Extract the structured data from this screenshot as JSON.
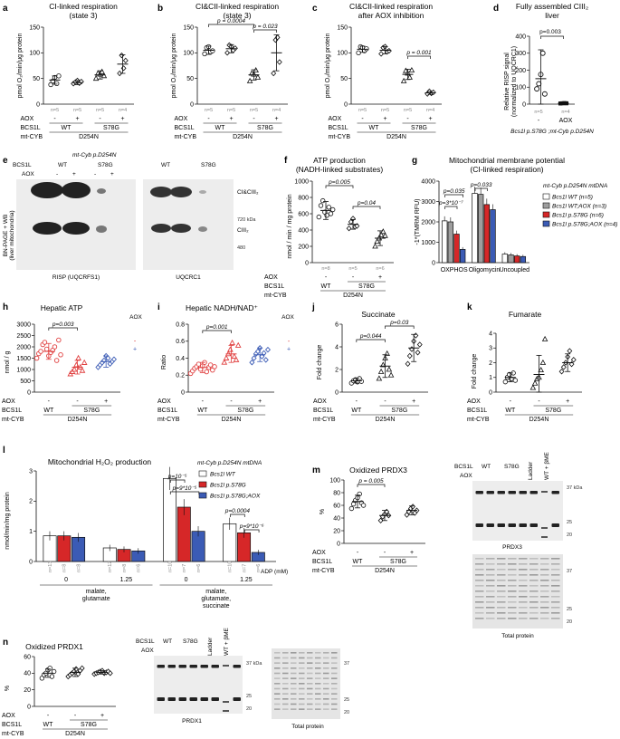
{
  "figure": {
    "panels": {
      "a": {
        "label": "a",
        "title": [
          "CI-linked respiration",
          "(state 3)"
        ]
      },
      "b": {
        "label": "b",
        "title": [
          "CI&CII-linked respiration",
          "(state 3)"
        ],
        "pvals": [
          "p = 0.0004",
          "p = 0.023"
        ]
      },
      "c": {
        "label": "c",
        "title": [
          "CI&CII-linked respiration",
          "after AOX inhibition"
        ],
        "pvals": [
          "p = 0.001"
        ]
      },
      "d": {
        "label": "d",
        "title": [
          "Fully assembled CIII₂",
          "liver"
        ],
        "ylabel": [
          "Relative RISP signal",
          "(normalized to UQCRC1)"
        ],
        "pvals": [
          "p=0.003"
        ],
        "ns": [
          "n=5",
          "n=4"
        ],
        "aox_row": [
          "-",
          "AOX"
        ],
        "genotype": "Bcs1l p.S78G ;mt-Cyb p.D254N"
      },
      "e": {
        "label": "e",
        "mtcyb": "mt-Cyb p.D254N",
        "bcs1l": "BCS1L",
        "aox": "AOX",
        "wt": "WT",
        "s78g": "S78G",
        "ylabel": [
          "BN-PAGE + WB",
          "(liver mitochondria)"
        ],
        "bands": [
          "CI&CIII₂",
          "CIII₂"
        ],
        "markers": [
          "720 kDa",
          "480"
        ],
        "blot_labels": [
          "RISP (UQCRFS1)",
          "UQCRC1"
        ]
      },
      "f": {
        "label": "f",
        "title": [
          "ATP production",
          "(NADH-linked substrates)"
        ],
        "ylabel": "nmol / min / mg protein",
        "pvals": [
          "p=0.005",
          "p=0.04"
        ]
      },
      "g": {
        "label": "g",
        "title": [
          "Mitochondrial membrane potential",
          "(CI-linked respiration)"
        ],
        "ylabel": "-1*(TMRM RFU)",
        "pvals": [
          "p=0.035",
          "p=3*10⁻⁷",
          "p=0.033"
        ],
        "xcats": [
          "OXPHOS",
          "Oligomycin",
          "Uncoupled"
        ],
        "legend_title": "mt-Cyb p.D254N mtDNA",
        "legend": [
          "Bcs1l WT (n=5)",
          "Bcs1l WT;AOX (n=3)",
          "Bcs1l p.S78G (n=6)",
          "Bcs1l p.S78G;AOX (n=4)"
        ]
      },
      "h": {
        "label": "h",
        "title": "Hepatic ATP",
        "ylabel": "nmol / g",
        "pvals": [
          "p=0.003"
        ],
        "ns": [
          "n=13",
          "n=8",
          "n=9"
        ],
        "aox_side": "AOX"
      },
      "i": {
        "label": "i",
        "title": "Hepatic NADH/NAD⁺",
        "ylabel": "Ratio",
        "pvals": [
          "p=0.001"
        ],
        "ns": [
          "n=13",
          "n=8",
          "n=9"
        ],
        "aox_side": "AOX"
      },
      "j": {
        "label": "j",
        "title": "Succinate",
        "ylabel": "Fold change",
        "pvals": [
          "p=0.044",
          "p=0.03"
        ],
        "ns": [
          "n=6",
          "n=7",
          "n=7"
        ]
      },
      "k": {
        "label": "k",
        "title": "Fumarate",
        "ylabel": "Fold change",
        "ns": [
          "n=6",
          "n=7",
          "n=7"
        ]
      },
      "l": {
        "label": "l",
        "title": "Mitochondrial H₂O₂ production",
        "ylabel": "nmol/min/mg protein",
        "pvals": [
          "p=10⁻⁵",
          "p=9*10⁻⁵",
          "p=0.0004",
          "p=9*10⁻⁶"
        ],
        "legend_title": "mt-Cyb p.D254N mtDNA",
        "legend": [
          "Bcs1l WT",
          "Bcs1l p.S78G",
          "Bcs1l p.S78G;AOX"
        ],
        "adp_label": "ADP (mM)",
        "adp": [
          "0",
          "1.25",
          "0",
          "1.25"
        ],
        "substrates": [
          [
            "malate,",
            "glutamate"
          ],
          [
            "malate,",
            "glutamate,",
            "succinate"
          ]
        ]
      },
      "m": {
        "label": "m",
        "title": "Oxidized PRDX3",
        "ylabel": "%",
        "pvals": [
          "p = 0.005"
        ],
        "ns": [
          "n=7",
          "n=5",
          "n=6"
        ],
        "blot_top": [
          "BCS1L",
          "WT",
          "S78G",
          "Ladder",
          "WT + βME"
        ],
        "markers": [
          "37 kDa",
          "25",
          "20"
        ],
        "blot_label": "PRDX3",
        "gel_label": "Total protein",
        "gel_markers": [
          "37",
          "25",
          "20"
        ]
      },
      "n": {
        "label": "n",
        "title": "Oxidized PRDX1",
        "ylabel": "%",
        "ns": [
          "n=7",
          "n=8",
          "n=9"
        ],
        "blot_top": [
          "BCS1L",
          "WT",
          "S78G",
          "Ladder",
          "WT + βME"
        ],
        "markers": [
          "37 kDa",
          "25",
          "20"
        ],
        "blot_label": "PRDX1",
        "gel_label": "Total protein",
        "gel_markers": [
          "37",
          "25",
          "20"
        ]
      }
    },
    "rows": {
      "aox": "AOX",
      "bcs1l": "BCS1L",
      "mtcyb": "mt-CYB",
      "wt": "WT",
      "s78g": "S78G",
      "d254n": "D254N",
      "minus": "-",
      "plus": "+"
    },
    "colors": {
      "wt": "#ffffff",
      "s78g": "#d62728",
      "aox": "#3b5bb5",
      "wtaox": "#9e9e9e",
      "outline": "#111111",
      "s78g_point": "#e04040",
      "aox_point": "#3b5bb5"
    }
  },
  "chart_data": [
    {
      "panel": "a",
      "type": "scatter",
      "ylabel": "pmol O₂/min/μg protein",
      "ylim": [
        0,
        150
      ],
      "yticks": [
        0,
        50,
        100,
        150
      ],
      "categories": [
        "WT -",
        "WT +",
        "S78G -",
        "S78G +"
      ],
      "ns": [
        "n=5",
        "n=5",
        "n=5",
        "n=4"
      ],
      "means": [
        47,
        42,
        57,
        78
      ],
      "sd": [
        8,
        4,
        8,
        18
      ],
      "points": [
        [
          38,
          45,
          52,
          40,
          55
        ],
        [
          40,
          43,
          46,
          41,
          44
        ],
        [
          50,
          60,
          58,
          63,
          55
        ],
        [
          60,
          95,
          70,
          85
        ]
      ]
    },
    {
      "panel": "b",
      "type": "scatter",
      "ylabel": "pmol O₂/min/μg protein",
      "ylim": [
        0,
        150
      ],
      "yticks": [
        0,
        50,
        100,
        150
      ],
      "categories": [
        "WT -",
        "WT +",
        "S78G -",
        "S78G +"
      ],
      "ns": [
        "n=5",
        "n=5",
        "n=5",
        "n=4"
      ],
      "means": [
        105,
        108,
        57,
        100
      ],
      "sd": [
        8,
        8,
        10,
        35
      ],
      "points": [
        [
          98,
          110,
          112,
          102,
          104
        ],
        [
          100,
          115,
          112,
          105,
          109
        ],
        [
          45,
          60,
          58,
          66,
          52
        ],
        [
          60,
          125,
          130,
          82
        ]
      ]
    },
    {
      "panel": "c",
      "type": "scatter",
      "ylabel": "pmol O₂/min/μg protein",
      "ylim": [
        0,
        150
      ],
      "yticks": [
        0,
        50,
        100,
        150
      ],
      "categories": [
        "WT -",
        "WT +",
        "S78G -",
        "S78G +"
      ],
      "ns": [
        "n=5",
        "n=5",
        "n=5",
        "n=4"
      ],
      "means": [
        107,
        105,
        58,
        22
      ],
      "sd": [
        6,
        7,
        10,
        3
      ],
      "points": [
        [
          100,
          112,
          110,
          104,
          108
        ],
        [
          98,
          110,
          112,
          102,
          104
        ],
        [
          45,
          65,
          60,
          52,
          66
        ],
        [
          20,
          25,
          21,
          23
        ]
      ]
    },
    {
      "panel": "d",
      "type": "scatter",
      "ylim": [
        0,
        400
      ],
      "yticks": [
        0,
        100,
        200,
        300,
        400
      ],
      "categories": [
        "-",
        "AOX"
      ],
      "means": [
        150,
        5
      ],
      "sd": [
        170,
        2
      ],
      "points": [
        [
          90,
          120,
          175,
          300,
          60
        ],
        [
          4,
          5,
          6,
          5
        ]
      ]
    },
    {
      "panel": "f",
      "type": "scatter",
      "ylim": [
        0,
        1000
      ],
      "yticks": [
        0,
        200,
        400,
        600,
        800,
        1000
      ],
      "categories": [
        "WT -",
        "S78G -",
        "S78G +"
      ],
      "ns": [
        "n=8",
        "n=5",
        "n=6"
      ],
      "means": [
        640,
        470,
        300
      ],
      "sd": [
        110,
        60,
        90
      ],
      "points": [
        [
          560,
          700,
          760,
          620,
          580,
          680,
          600,
          650
        ],
        [
          420,
          500,
          540,
          440,
          450
        ],
        [
          200,
          260,
          300,
          340,
          380,
          330
        ]
      ]
    },
    {
      "panel": "g",
      "type": "bar",
      "ylim": [
        0,
        4000
      ],
      "yticks": [
        0,
        1000,
        2000,
        3000,
        4000
      ],
      "categories": [
        "OXPHOS",
        "Oligomycin",
        "Uncoupled"
      ],
      "series": [
        {
          "name": "Bcs1l WT (n=5)",
          "values": [
            2050,
            3400,
            420
          ]
        },
        {
          "name": "Bcs1l WT;AOX (n=3)",
          "values": [
            2000,
            3350,
            380
          ]
        },
        {
          "name": "Bcs1l p.S78G (n=6)",
          "values": [
            1400,
            2850,
            330
          ]
        },
        {
          "name": "Bcs1l p.S78G;AOX (n=4)",
          "values": [
            650,
            2600,
            300
          ]
        }
      ]
    },
    {
      "panel": "h",
      "type": "scatter",
      "ylim": [
        0,
        3000
      ],
      "yticks": [
        0,
        500,
        1000,
        1500,
        2000,
        2500,
        3000
      ],
      "categories": [
        "WT -",
        "S78G -",
        "S78G +"
      ],
      "means": [
        1800,
        1100,
        1350
      ],
      "sd": [
        350,
        300,
        250
      ],
      "points": [
        [
          1500,
          1700,
          1800,
          2100,
          2200,
          1900,
          1600,
          1750,
          1850,
          2000,
          1400,
          2300,
          1650
        ],
        [
          800,
          900,
          1000,
          1200,
          1500,
          1100,
          950,
          1300
        ],
        [
          1100,
          1200,
          1300,
          1400,
          1600,
          1500,
          1250,
          1350,
          1450
        ]
      ],
      "side": {
        "minus": 2300,
        "plus": 1950
      }
    },
    {
      "panel": "i",
      "type": "scatter",
      "ylim": [
        0,
        0.8
      ],
      "yticks": [
        0,
        0.2,
        0.4,
        0.6,
        0.8
      ],
      "categories": [
        "WT -",
        "S78G -",
        "S78G +"
      ],
      "means": [
        0.29,
        0.45,
        0.44
      ],
      "sd": [
        0.06,
        0.1,
        0.08
      ],
      "points": [
        [
          0.22,
          0.25,
          0.28,
          0.3,
          0.33,
          0.27,
          0.31,
          0.35,
          0.24,
          0.29,
          0.32,
          0.26,
          0.3
        ],
        [
          0.35,
          0.4,
          0.45,
          0.5,
          0.58,
          0.42,
          0.38,
          0.55
        ],
        [
          0.35,
          0.4,
          0.45,
          0.48,
          0.52,
          0.42,
          0.46,
          0.38,
          0.5
        ]
      ],
      "side": {
        "minus": 0.61,
        "plus": 0.52
      }
    },
    {
      "panel": "j",
      "type": "scatter",
      "ylim": [
        0,
        6
      ],
      "yticks": [
        0,
        2,
        4,
        6
      ],
      "categories": [
        "WT -",
        "S78G -",
        "S78G +"
      ],
      "means": [
        1.0,
        2.3,
        3.9
      ],
      "sd": [
        0.2,
        1.0,
        1.2
      ],
      "points": [
        [
          0.8,
          1.0,
          1.1,
          0.9,
          1.2,
          0.95
        ],
        [
          1.2,
          1.8,
          2.4,
          3.0,
          3.4,
          2.0,
          1.5
        ],
        [
          2.5,
          3.2,
          3.8,
          4.5,
          5.0,
          3.5,
          4.2
        ]
      ]
    },
    {
      "panel": "k",
      "type": "scatter",
      "ylim": [
        0,
        4
      ],
      "yticks": [
        0,
        1,
        2,
        3,
        4
      ],
      "categories": [
        "WT -",
        "S78G -",
        "S78G +"
      ],
      "means": [
        1.0,
        1.2,
        2.0
      ],
      "sd": [
        0.3,
        1.3,
        0.6
      ],
      "points": [
        [
          0.7,
          1.0,
          1.2,
          0.9,
          1.3,
          0.8
        ],
        [
          0.3,
          0.6,
          0.9,
          1.0,
          1.5,
          2.0,
          3.6
        ],
        [
          1.4,
          1.7,
          2.0,
          2.4,
          2.8,
          1.9,
          2.2
        ]
      ]
    },
    {
      "panel": "l",
      "type": "bar",
      "ylim": [
        0,
        3
      ],
      "yticks": [
        0,
        1,
        2,
        3
      ],
      "groups": [
        "0 / malate,glutamate",
        "1.25 / malate,glutamate",
        "0 / malate,glutamate,succinate",
        "1.25 / malate,glutamate,succinate"
      ],
      "series": [
        {
          "name": "Bcs1l WT",
          "values": [
            0.85,
            0.45,
            2.75,
            1.25
          ]
        },
        {
          "name": "Bcs1l p.S78G",
          "values": [
            0.85,
            0.4,
            1.8,
            0.95
          ]
        },
        {
          "name": "Bcs1l p.S78G;AOX",
          "values": [
            0.8,
            0.35,
            1.0,
            0.3
          ]
        }
      ],
      "ns": [
        [
          "n=13",
          "n=8",
          "n=8"
        ],
        [
          "n=12",
          "n=8",
          "n=6"
        ],
        [
          "n=10",
          "n=7",
          "n=6"
        ],
        [
          "n=10",
          "n=7",
          "n=6"
        ]
      ]
    },
    {
      "panel": "m",
      "type": "scatter",
      "ylim": [
        0,
        100
      ],
      "yticks": [
        0,
        20,
        40,
        60,
        80,
        100
      ],
      "categories": [
        "WT -",
        "S78G -",
        "S78G +"
      ],
      "means": [
        66,
        44,
        52
      ],
      "sd": [
        10,
        8,
        7
      ],
      "points": [
        [
          55,
          62,
          68,
          72,
          78,
          64,
          60
        ],
        [
          36,
          42,
          46,
          50,
          44
        ],
        [
          45,
          50,
          55,
          58,
          48,
          52
        ]
      ]
    },
    {
      "panel": "n",
      "type": "scatter",
      "ylim": [
        0,
        60
      ],
      "yticks": [
        0,
        20,
        40,
        60
      ],
      "categories": [
        "WT -",
        "S78G -",
        "S78G +"
      ],
      "means": [
        40,
        41,
        41
      ],
      "sd": [
        5,
        5,
        2
      ],
      "points": [
        [
          34,
          38,
          40,
          44,
          46,
          36,
          42
        ],
        [
          36,
          38,
          40,
          42,
          45,
          39,
          43,
          46
        ],
        [
          39,
          40,
          41,
          42,
          43,
          40,
          41,
          42,
          40
        ]
      ]
    }
  ]
}
